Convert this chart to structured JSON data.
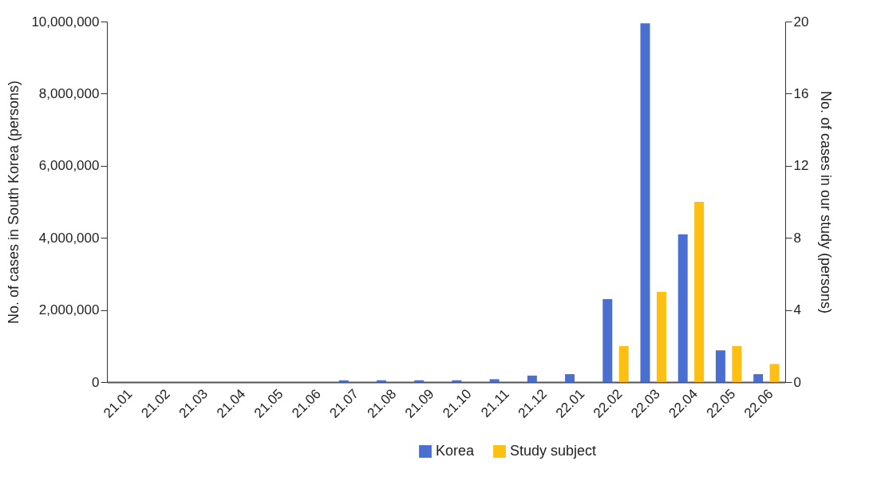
{
  "chart_data": {
    "type": "bar",
    "categories": [
      "21.01",
      "21.02",
      "21.03",
      "21.04",
      "21.05",
      "21.06",
      "21.07",
      "21.08",
      "21.09",
      "21.10",
      "21.11",
      "21.12",
      "22.01",
      "22.02",
      "22.03",
      "22.04",
      "22.05",
      "22.06"
    ],
    "series": [
      {
        "name": "Korea",
        "color": "#4a6fd0",
        "values": [
          0,
          0,
          0,
          0,
          0,
          0,
          50000,
          50000,
          50000,
          50000,
          80000,
          180000,
          220000,
          2300000,
          9950000,
          4100000,
          880000,
          220000
        ]
      },
      {
        "name": "Study subject",
        "color": "#fdbf11",
        "axis": "y2",
        "values": [
          0,
          0,
          0,
          0,
          0,
          0,
          0,
          0,
          0,
          0,
          0,
          0,
          0,
          2,
          5,
          10,
          2,
          1
        ]
      }
    ],
    "ylabel": "No. of cases in South Korea (persons)",
    "y2label": "No. of cases in our study (persons)",
    "ylim": [
      0,
      10000000
    ],
    "yticks": [
      0,
      {
        "value": 2000000,
        "label": "2,000,000"
      },
      {
        "value": 4000000,
        "label": "4,000,000"
      },
      {
        "value": 6000000,
        "label": "6,000,000"
      },
      {
        "value": 8000000,
        "label": "8,000,000"
      },
      {
        "value": 10000000,
        "label": "10,000,000"
      }
    ],
    "y2lim": [
      0,
      20
    ],
    "y2ticks": [
      0,
      4,
      8,
      12,
      16,
      20
    ],
    "grid": false,
    "legend": "bottom"
  }
}
